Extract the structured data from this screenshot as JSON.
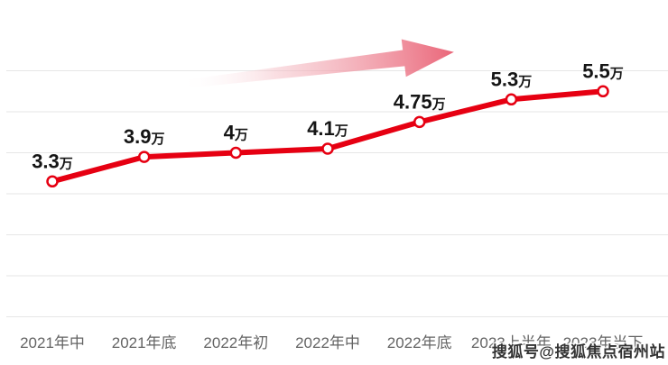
{
  "watermark": {
    "text": "搜狐号@搜狐焦点宿州站"
  },
  "chart_data": {
    "type": "line",
    "title": "",
    "categories": [
      "2021年中",
      "2021年底",
      "2022年初",
      "2022年中",
      "2022年底",
      "2023上半年",
      "2023年当下"
    ],
    "values": [
      3.3,
      3.9,
      4,
      4.1,
      4.75,
      5.3,
      5.5
    ],
    "point_labels": [
      "3.3",
      "3.9",
      "4",
      "4.1",
      "4.75",
      "5.3",
      "5.5"
    ],
    "unit": "万",
    "xlabel": "",
    "ylabel": "",
    "ylim": [
      0,
      6.5
    ],
    "gridline_values": [
      0,
      1,
      2,
      3,
      4,
      5,
      6
    ],
    "grid_on": true,
    "legend": "none",
    "annotation": "upward-trend-arrow",
    "line_color": "#e60012",
    "marker_fill": "#ffffff",
    "grid_color": "#e6e6e6",
    "point_label_color": "#151515",
    "axis_label_color": "#646464",
    "arrow_color_tail": "#ffffff",
    "arrow_color_mid": "#f5c3ca",
    "arrow_color_head": "#e95e72"
  }
}
